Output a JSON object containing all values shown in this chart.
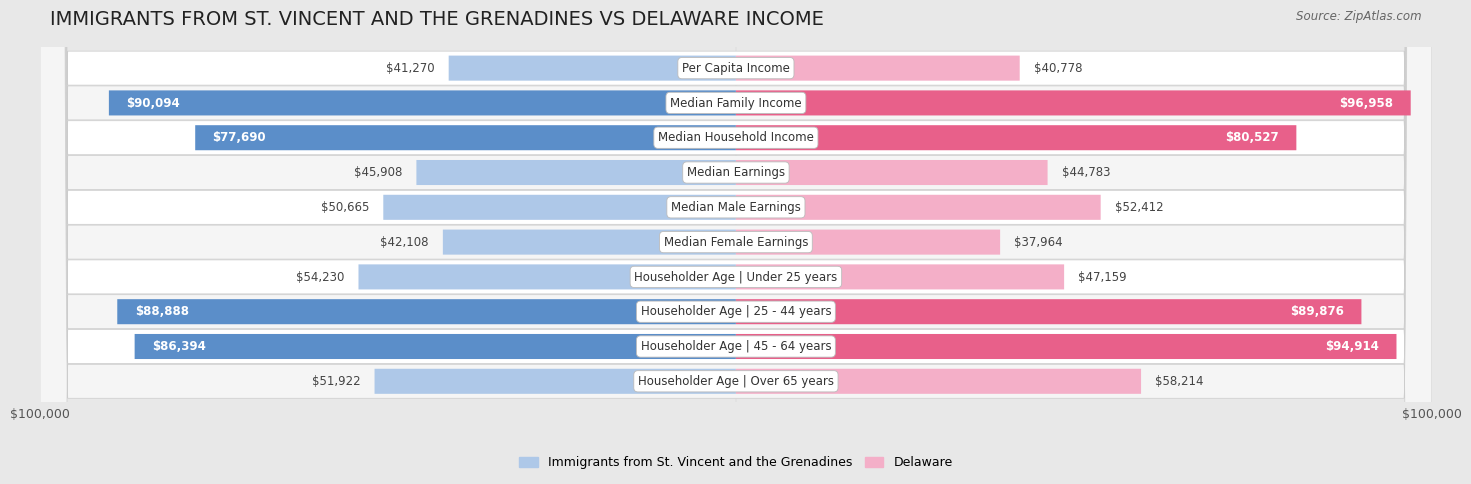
{
  "title": "IMMIGRANTS FROM ST. VINCENT AND THE GRENADINES VS DELAWARE INCOME",
  "source": "Source: ZipAtlas.com",
  "categories": [
    "Per Capita Income",
    "Median Family Income",
    "Median Household Income",
    "Median Earnings",
    "Median Male Earnings",
    "Median Female Earnings",
    "Householder Age | Under 25 years",
    "Householder Age | 25 - 44 years",
    "Householder Age | 45 - 64 years",
    "Householder Age | Over 65 years"
  ],
  "left_values": [
    41270,
    90094,
    77690,
    45908,
    50665,
    42108,
    54230,
    88888,
    86394,
    51922
  ],
  "right_values": [
    40778,
    96958,
    80527,
    44783,
    52412,
    37964,
    47159,
    89876,
    94914,
    58214
  ],
  "left_labels": [
    "$41,270",
    "$90,094",
    "$77,690",
    "$45,908",
    "$50,665",
    "$42,108",
    "$54,230",
    "$88,888",
    "$86,394",
    "$51,922"
  ],
  "right_labels": [
    "$40,778",
    "$96,958",
    "$80,527",
    "$44,783",
    "$52,412",
    "$37,964",
    "$47,159",
    "$89,876",
    "$94,914",
    "$58,214"
  ],
  "max_value": 100000,
  "left_color_light": "#aec8e8",
  "left_color_dark": "#5b8ec9",
  "right_color_light": "#f4afc8",
  "right_color_dark": "#e8608a",
  "left_legend": "Immigrants from St. Vincent and the Grenadines",
  "right_legend": "Delaware",
  "bg_color": "#e8e8e8",
  "row_bg_odd": "#f5f5f5",
  "row_bg_even": "#ffffff",
  "xlabel_left": "$100,000",
  "xlabel_right": "$100,000",
  "title_fontsize": 14,
  "label_fontsize": 8.5,
  "category_fontsize": 8.5,
  "threshold": 75000
}
